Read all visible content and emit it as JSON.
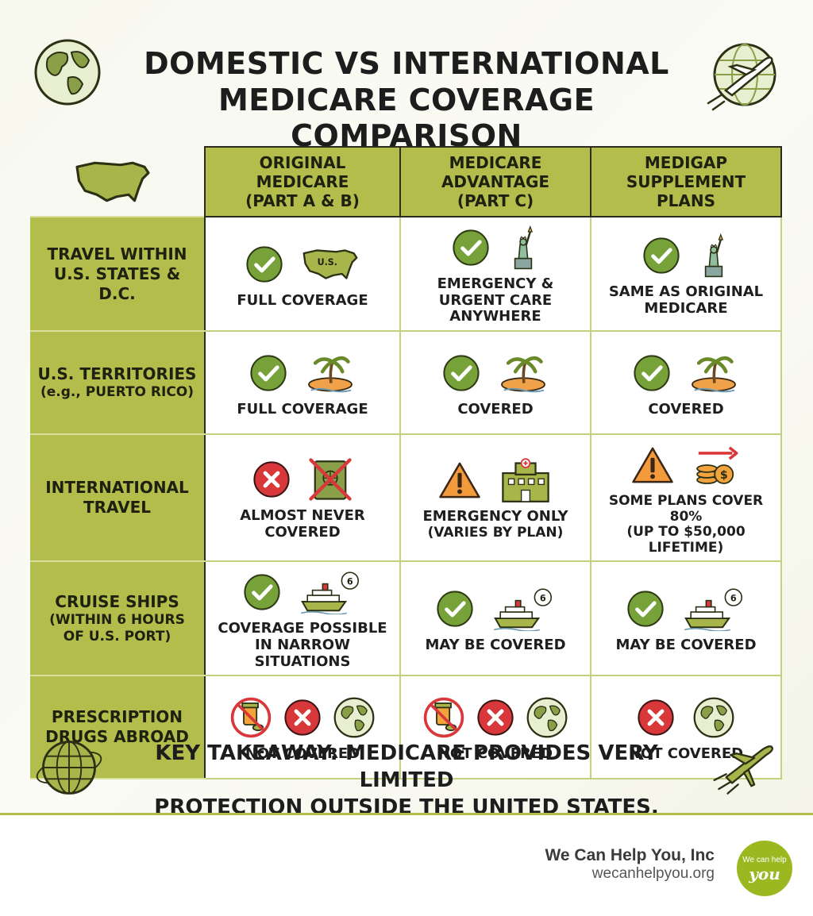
{
  "title": {
    "line1": "DOMESTIC VS INTERNATIONAL",
    "line2": "MEDICARE COVERAGE COMPARISON"
  },
  "columns": [
    {
      "line1": "ORIGINAL MEDICARE",
      "line2": "(PART A & B)"
    },
    {
      "line1": "MEDICARE",
      "line2": "ADVANTAGE",
      "line3": "(PART C)"
    },
    {
      "line1": "MEDIGAP",
      "line2": "SUPPLEMENT PLANS"
    }
  ],
  "rows": [
    {
      "label1": "TRAVEL WITHIN",
      "label2": "U.S. STATES & D.C.",
      "cells": [
        {
          "status": "check",
          "extra_icon": "us-map-icon",
          "map_label": "U.S.",
          "text1": "FULL COVERAGE"
        },
        {
          "status": "check",
          "extra_icon": "statue-of-liberty-icon",
          "text1": "EMERGENCY &",
          "text2": "URGENT CARE",
          "text3": "ANYWHERE"
        },
        {
          "status": "check",
          "extra_icon": "statue-of-liberty-icon",
          "text1": "SAME AS ORIGINAL",
          "text2": "MEDICARE"
        }
      ]
    },
    {
      "label1": "U.S. TERRITORIES",
      "label2": "(e.g., PUERTO RICO)",
      "cells": [
        {
          "status": "check",
          "extra_icon": "island-icon",
          "text1": "FULL COVERAGE"
        },
        {
          "status": "check",
          "extra_icon": "island-icon",
          "text1": "COVERED"
        },
        {
          "status": "check",
          "extra_icon": "island-icon",
          "text1": "COVERED"
        }
      ]
    },
    {
      "label1": "INTERNATIONAL",
      "label2": "TRAVEL",
      "cells": [
        {
          "status": "cross",
          "extra_icon": "crossed-passport-icon",
          "text1": "ALMOST NEVER",
          "text2": "COVERED"
        },
        {
          "status": "warning",
          "extra_icon": "hospital-icon",
          "text1": "EMERGENCY ONLY",
          "text2": "(VARIES BY PLAN)"
        },
        {
          "status": "warning",
          "extra_icon": "coins-arrow-icon",
          "text1": "SOME PLANS COVER 80%",
          "text2": "(UP TO $50,000 LIFETIME)"
        }
      ]
    },
    {
      "label1": "CRUISE SHIPS",
      "label2": "(WITHIN 6 HOURS",
      "label3": "OF U.S. PORT)",
      "cells": [
        {
          "status": "check",
          "extra_icon": "cruise-ship-icon",
          "clock_label": "6",
          "text1": "COVERAGE POSSIBLE",
          "text2": "IN NARROW SITUATIONS"
        },
        {
          "status": "check",
          "extra_icon": "cruise-ship-icon",
          "clock_label": "6",
          "text1": "MAY BE COVERED"
        },
        {
          "status": "check",
          "extra_icon": "cruise-ship-icon",
          "clock_label": "6",
          "text1": "MAY BE COVERED"
        }
      ]
    },
    {
      "label1": "PRESCRIPTION",
      "label2": "DRUGS ABROAD",
      "cells": [
        {
          "status": "cross",
          "extra_icons": [
            "no-pills-icon",
            "globe-icon"
          ],
          "text1": "NOT COVERED"
        },
        {
          "status": "cross",
          "extra_icons": [
            "no-pills-icon",
            "globe-icon"
          ],
          "text1": "NOT COVERED"
        },
        {
          "status": "cross",
          "extra_icons": [
            "globe-icon"
          ],
          "text1": "NOT COVERED"
        }
      ]
    }
  ],
  "takeaway": {
    "line1": "KEY TAKEAWAY: MEDICARE PROVIDES VERY LIMITED",
    "line2": "PROTECTION OUTSIDE THE UNITED STATES."
  },
  "footer": {
    "brand": "We Can Help You, Inc",
    "url": "wecanhelpyou.org",
    "logo_line1": "We can help",
    "logo_line2": "you"
  },
  "colors": {
    "accent": "#b2bd4c",
    "check_green": "#77a23a",
    "cross_red": "#d9383a",
    "warning_orange": "#f29a3c"
  }
}
